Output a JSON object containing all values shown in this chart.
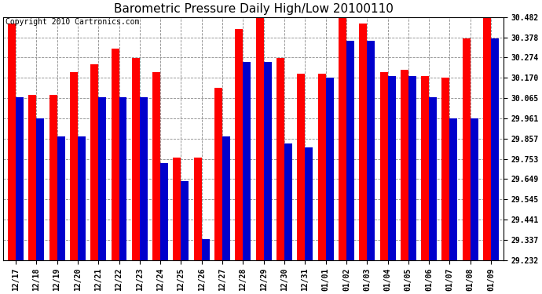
{
  "title": "Barometric Pressure Daily High/Low 20100110",
  "copyright": "Copyright 2010 Cartronics.com",
  "categories": [
    "12/17",
    "12/18",
    "12/19",
    "12/20",
    "12/21",
    "12/22",
    "12/23",
    "12/24",
    "12/25",
    "12/26",
    "12/27",
    "12/28",
    "12/29",
    "12/30",
    "12/31",
    "01/01",
    "01/02",
    "01/03",
    "01/04",
    "01/05",
    "01/06",
    "01/07",
    "01/08",
    "01/09"
  ],
  "highs": [
    30.45,
    30.08,
    30.08,
    30.2,
    30.24,
    30.32,
    30.27,
    30.2,
    29.76,
    29.76,
    30.12,
    30.42,
    30.49,
    30.27,
    30.19,
    30.19,
    30.48,
    30.45,
    30.2,
    30.21,
    30.18,
    30.17,
    30.37,
    30.49
  ],
  "lows": [
    30.07,
    29.96,
    29.87,
    29.87,
    30.07,
    30.07,
    30.07,
    29.73,
    29.64,
    29.34,
    29.87,
    30.25,
    30.25,
    29.83,
    29.81,
    30.17,
    30.36,
    30.36,
    30.18,
    30.18,
    30.07,
    29.96,
    29.96,
    30.37
  ],
  "high_color": "#ff0000",
  "low_color": "#0000cc",
  "background_color": "#ffffff",
  "plot_bg_color": "#ffffff",
  "grid_color": "#888888",
  "ylim_min": 29.232,
  "ylim_max": 30.482,
  "yticks": [
    29.232,
    29.337,
    29.441,
    29.545,
    29.649,
    29.753,
    29.857,
    29.961,
    30.065,
    30.17,
    30.274,
    30.378,
    30.482
  ],
  "title_fontsize": 11,
  "copyright_fontsize": 7,
  "tick_fontsize": 7,
  "bar_width": 0.38
}
